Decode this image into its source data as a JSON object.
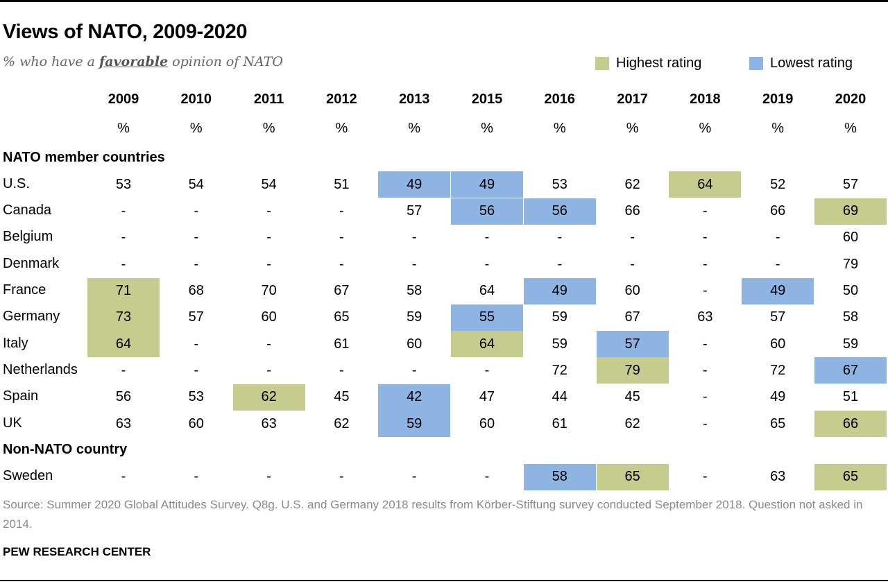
{
  "title": "Views of NATO, 2009-2020",
  "subtitle": {
    "pre": "% who have a ",
    "emph": "favorable",
    "post": " opinion of NATO"
  },
  "legend": {
    "high": {
      "label": "Highest rating",
      "color": "#c5cc8e"
    },
    "low": {
      "label": "Lowest rating",
      "color": "#8db4e2"
    }
  },
  "source": "Source: Summer 2020 Global Attitudes Survey. Q8g. U.S. and Germany 2018 results from Körber-Stiftung survey conducted September 2018. Question not asked in 2014.",
  "org": "PEW RESEARCH CENTER",
  "chart_data": {
    "type": "table",
    "columns": [
      "2009",
      "2010",
      "2011",
      "2012",
      "2013",
      "2015",
      "2016",
      "2017",
      "2018",
      "2019",
      "2020"
    ],
    "unit": "%",
    "groups": [
      {
        "label": "NATO member countries",
        "rows": [
          {
            "country": "U.S.",
            "values": [
              "53",
              "54",
              "54",
              "51",
              "49",
              "49",
              "53",
              "62",
              "64",
              "52",
              "57"
            ],
            "highlight": [
              "",
              "",
              "",
              "",
              "low",
              "low",
              "",
              "",
              "high",
              "",
              ""
            ]
          },
          {
            "country": "Canada",
            "values": [
              "-",
              "-",
              "-",
              "-",
              "57",
              "56",
              "56",
              "66",
              "-",
              "66",
              "69"
            ],
            "highlight": [
              "",
              "",
              "",
              "",
              "",
              "low",
              "low",
              "",
              "",
              "",
              "high"
            ]
          },
          {
            "country": "Belgium",
            "values": [
              "-",
              "-",
              "-",
              "-",
              "-",
              "-",
              "-",
              "-",
              "-",
              "-",
              "60"
            ],
            "highlight": [
              "",
              "",
              "",
              "",
              "",
              "",
              "",
              "",
              "",
              "",
              ""
            ]
          },
          {
            "country": "Denmark",
            "values": [
              "-",
              "-",
              "-",
              "-",
              "-",
              "-",
              "-",
              "-",
              "-",
              "-",
              "79"
            ],
            "highlight": [
              "",
              "",
              "",
              "",
              "",
              "",
              "",
              "",
              "",
              "",
              ""
            ]
          },
          {
            "country": "France",
            "values": [
              "71",
              "68",
              "70",
              "67",
              "58",
              "64",
              "49",
              "60",
              "-",
              "49",
              "50"
            ],
            "highlight": [
              "high",
              "",
              "",
              "",
              "",
              "",
              "low",
              "",
              "",
              "low",
              ""
            ]
          },
          {
            "country": "Germany",
            "values": [
              "73",
              "57",
              "60",
              "65",
              "59",
              "55",
              "59",
              "67",
              "63",
              "57",
              "58"
            ],
            "highlight": [
              "high",
              "",
              "",
              "",
              "",
              "low",
              "",
              "",
              "",
              "",
              ""
            ]
          },
          {
            "country": "Italy",
            "values": [
              "64",
              "-",
              "-",
              "61",
              "60",
              "64",
              "59",
              "57",
              "-",
              "60",
              "59"
            ],
            "highlight": [
              "high",
              "",
              "",
              "",
              "",
              "high",
              "",
              "low",
              "",
              "",
              ""
            ]
          },
          {
            "country": "Netherlands",
            "values": [
              "-",
              "-",
              "-",
              "-",
              "-",
              "-",
              "72",
              "79",
              "-",
              "72",
              "67"
            ],
            "highlight": [
              "",
              "",
              "",
              "",
              "",
              "",
              "",
              "high",
              "",
              "",
              "low"
            ]
          },
          {
            "country": "Spain",
            "values": [
              "56",
              "53",
              "62",
              "45",
              "42",
              "47",
              "44",
              "45",
              "-",
              "49",
              "51"
            ],
            "highlight": [
              "",
              "",
              "high",
              "",
              "low",
              "",
              "",
              "",
              "",
              "",
              ""
            ]
          },
          {
            "country": "UK",
            "values": [
              "63",
              "60",
              "63",
              "62",
              "59",
              "60",
              "61",
              "62",
              "-",
              "65",
              "66"
            ],
            "highlight": [
              "",
              "",
              "",
              "",
              "low",
              "",
              "",
              "",
              "",
              "",
              "high"
            ]
          }
        ]
      },
      {
        "label": "Non-NATO country",
        "rows": [
          {
            "country": "Sweden",
            "values": [
              "-",
              "-",
              "-",
              "-",
              "-",
              "-",
              "58",
              "65",
              "-",
              "63",
              "65"
            ],
            "highlight": [
              "",
              "",
              "",
              "",
              "",
              "",
              "low",
              "high",
              "",
              "",
              "high"
            ]
          }
        ]
      }
    ]
  }
}
